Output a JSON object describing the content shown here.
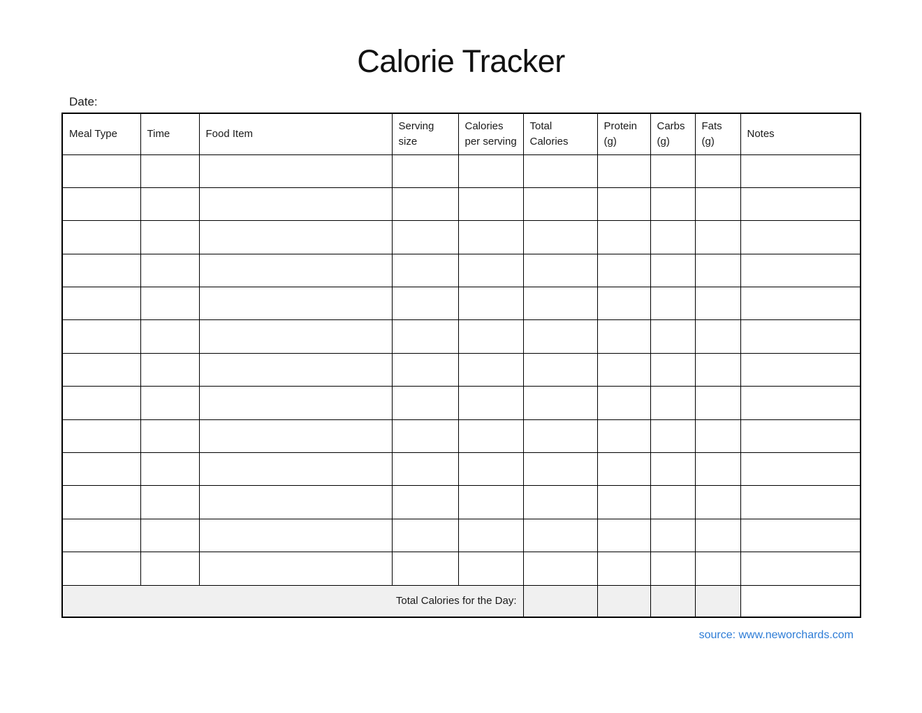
{
  "page": {
    "title": "Calorie Tracker",
    "date_label": "Date:",
    "date_value": "",
    "source_text": "source: www.neworchards.com"
  },
  "table": {
    "headers": [
      "Meal Type",
      "Time",
      "Food Item",
      "Serving\nsize",
      "Calories\nper serving",
      "Total\nCalories",
      "Protein\n(g)",
      "Carbs\n(g)",
      "Fats\n(g)",
      "Notes"
    ],
    "empty_row_count": 13,
    "column_count": 10,
    "total_row": {
      "label": "Total Calories for the Day:",
      "total_calories_value": "",
      "protein_value": "",
      "carbs_value": "",
      "fats_value": "",
      "notes_value": ""
    }
  },
  "colors": {
    "page_bg": "#ffffff",
    "text": "#1a1a1a",
    "border": "#000000",
    "shaded_cell_bg": "#f0f0f0",
    "link_blue": "#2d7cd6"
  }
}
